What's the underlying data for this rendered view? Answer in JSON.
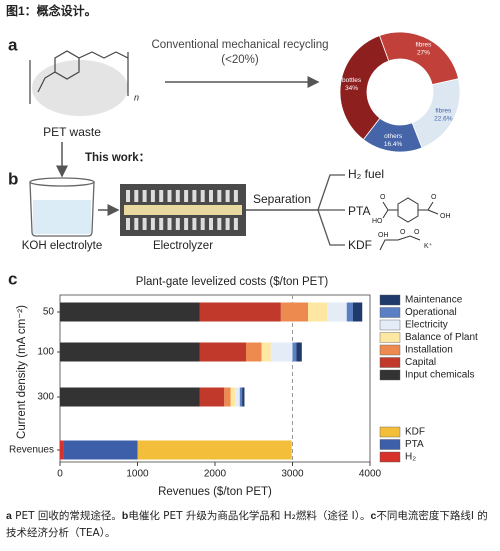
{
  "header": {
    "title": "图1：概念设计。"
  },
  "panels": {
    "a": {
      "label": "a",
      "arrow_text": "Conventional mechanical recycling",
      "arrow_subtext": "(<20%)",
      "waste_label": "PET waste",
      "subscript": "n"
    },
    "b": {
      "label": "b",
      "this_work": "This work：",
      "separation": "Separation",
      "electrolyte": "KOH electrolyte",
      "electrolyzer": "Electrolyzer",
      "products": [
        "H₂ fuel",
        "PTA",
        "KDF"
      ],
      "pta_atoms": [
        "O",
        "HO",
        "O",
        "OH"
      ],
      "kdf_atoms": [
        "OH",
        "O",
        "O",
        "K⁺"
      ]
    },
    "c": {
      "label": "c"
    }
  },
  "chart_data": [
    {
      "type": "donut",
      "categories": [
        "fibres",
        "fibres",
        "others",
        "bottles"
      ],
      "values": [
        27,
        22.6,
        16.4,
        34
      ],
      "value_labels": [
        "27%",
        "22.6%",
        "16.4%",
        "34%"
      ],
      "colors": [
        "#c1403a",
        "#dde7f2",
        "#4565a8",
        "#8e1f1f"
      ]
    },
    {
      "type": "stacked-barh",
      "title": "Plant-gate levelized costs ($/ton PET)",
      "categories": [
        "50",
        "100",
        "300",
        "Revenues"
      ],
      "y_label": "Current density (mA cm⁻²)",
      "x_label": "Revenues ($/ton PET)",
      "xlim": [
        0,
        4000
      ],
      "xticks": [
        0,
        1000,
        2000,
        3000,
        4000
      ],
      "reference_line": 3000,
      "series": [
        {
          "name": "Input chemicals",
          "color": "#333333",
          "values": [
            1800,
            1800,
            1800,
            null
          ]
        },
        {
          "name": "Capital",
          "color": "#c0392b",
          "values": [
            1050,
            600,
            320,
            null
          ]
        },
        {
          "name": "Installation",
          "color": "#ec8a4f",
          "values": [
            350,
            200,
            80,
            null
          ]
        },
        {
          "name": "Balance of Plant",
          "color": "#fde8a3",
          "values": [
            250,
            120,
            60,
            null
          ]
        },
        {
          "name": "Electricity",
          "color": "#e4edf7",
          "values": [
            250,
            280,
            60,
            null
          ]
        },
        {
          "name": "Operational",
          "color": "#5b7fc4",
          "values": [
            80,
            50,
            30,
            null
          ]
        },
        {
          "name": "Maintenance",
          "color": "#1f3a6b",
          "values": [
            120,
            70,
            30,
            null
          ]
        },
        {
          "name": "H₂",
          "color": "#d6312b",
          "values": [
            null,
            null,
            null,
            40
          ]
        },
        {
          "name": "PTA",
          "color": "#3d5ea8",
          "values": [
            null,
            null,
            null,
            960
          ]
        },
        {
          "name": "KDF",
          "color": "#f3bf3a",
          "values": [
            null,
            null,
            null,
            1990
          ]
        }
      ]
    }
  ],
  "caption": [
    "a",
    " PET 回收的常规途径。",
    "b",
    "电催化 PET 升级为商品化学品和 H₂燃料（途径 I）。",
    "c",
    "不同电流密度下路线I 的技术经济分析（TEA）。"
  ]
}
